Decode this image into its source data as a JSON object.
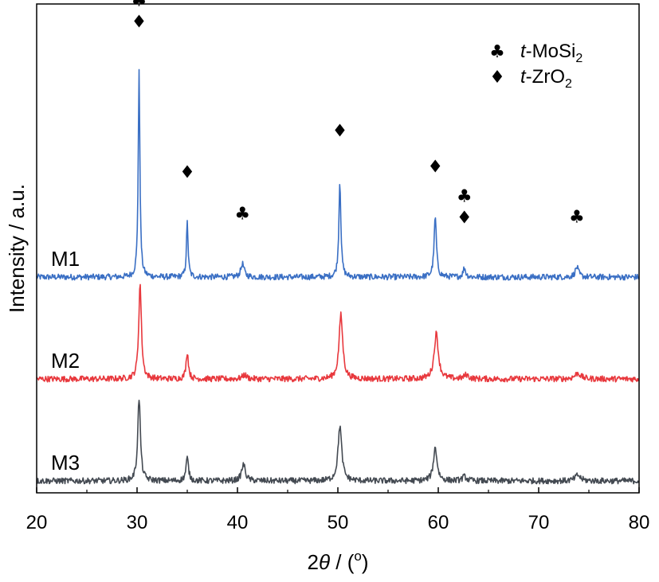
{
  "chart_data": {
    "type": "line",
    "xlabel": "2θ / (º)",
    "xlabel_var": "θ",
    "xlabel_prefix": "2",
    "xlabel_suffix": " / (",
    "xlabel_unit": "o",
    "xlabel_close": ")",
    "ylabel": "Intensity / a.u.",
    "xlim": [
      20,
      80
    ],
    "xticks": [
      20,
      30,
      40,
      50,
      60,
      70,
      80
    ],
    "yticks_shown": false,
    "legend": {
      "placement": "top-right",
      "entries": [
        {
          "symbol": "♣",
          "symbol_name": "club-icon",
          "italic": "t",
          "text": "-MoSi",
          "sub": "2"
        },
        {
          "symbol": "♦",
          "symbol_name": "diamond-icon",
          "italic": "t",
          "text": "-ZrO",
          "sub": "2"
        }
      ]
    },
    "series": [
      {
        "name": "M1",
        "color": "#3a6fc4",
        "baseline": 1.0,
        "noise": 0.012,
        "peaks": [
          {
            "x": 30.2,
            "h": 4.95,
            "w": 0.1
          },
          {
            "x": 35.0,
            "h": 1.32,
            "w": 0.1
          },
          {
            "x": 40.5,
            "h": 0.32,
            "w": 0.2
          },
          {
            "x": 50.2,
            "h": 2.32,
            "w": 0.12
          },
          {
            "x": 59.7,
            "h": 1.45,
            "w": 0.14
          },
          {
            "x": 62.6,
            "h": 0.22,
            "w": 0.15
          },
          {
            "x": 73.8,
            "h": 0.24,
            "w": 0.2
          }
        ]
      },
      {
        "name": "M2",
        "color": "#e8383d",
        "baseline": 0.0,
        "noise": 0.012,
        "peaks": [
          {
            "x": 30.3,
            "h": 2.3,
            "w": 0.16
          },
          {
            "x": 35.0,
            "h": 0.65,
            "w": 0.14
          },
          {
            "x": 40.7,
            "h": 0.1,
            "w": 0.25
          },
          {
            "x": 50.3,
            "h": 1.55,
            "w": 0.22
          },
          {
            "x": 59.8,
            "h": 1.1,
            "w": 0.25
          },
          {
            "x": 62.8,
            "h": 0.1,
            "w": 0.25
          },
          {
            "x": 73.9,
            "h": 0.14,
            "w": 0.35
          }
        ]
      },
      {
        "name": "M3",
        "color": "#444a52",
        "baseline": -0.95,
        "noise": 0.012,
        "peaks": [
          {
            "x": 30.2,
            "h": 2.0,
            "w": 0.16
          },
          {
            "x": 35.0,
            "h": 0.55,
            "w": 0.15
          },
          {
            "x": 40.6,
            "h": 0.4,
            "w": 0.22
          },
          {
            "x": 50.2,
            "h": 1.33,
            "w": 0.22
          },
          {
            "x": 59.7,
            "h": 0.8,
            "w": 0.22
          },
          {
            "x": 62.6,
            "h": 0.1,
            "w": 0.25
          },
          {
            "x": 73.9,
            "h": 0.14,
            "w": 0.3
          }
        ]
      }
    ],
    "ylim": [
      -1.2,
      4.6
    ],
    "annotations": [
      {
        "x": 30.2,
        "symbols": [
          "♣",
          "♦"
        ],
        "names": [
          "club-icon",
          "diamond-icon"
        ],
        "over_y": 5.95
      },
      {
        "x": 35.0,
        "symbols": [
          "♦"
        ],
        "names": [
          "diamond-icon"
        ],
        "over_y": 2.32
      },
      {
        "x": 40.5,
        "symbols": [
          "♣"
        ],
        "names": [
          "club-icon"
        ],
        "over_y": 1.32
      },
      {
        "x": 50.2,
        "symbols": [
          "♦"
        ],
        "names": [
          "diamond-icon"
        ],
        "over_y": 3.32
      },
      {
        "x": 59.7,
        "symbols": [
          "♦"
        ],
        "names": [
          "diamond-icon"
        ],
        "over_y": 2.45
      },
      {
        "x": 62.6,
        "symbols": [
          "♣",
          "♦"
        ],
        "names": [
          "club-icon",
          "diamond-icon"
        ],
        "over_y": 1.22
      },
      {
        "x": 73.8,
        "symbols": [
          "♣"
        ],
        "names": [
          "club-icon"
        ],
        "over_y": 1.24
      }
    ]
  }
}
